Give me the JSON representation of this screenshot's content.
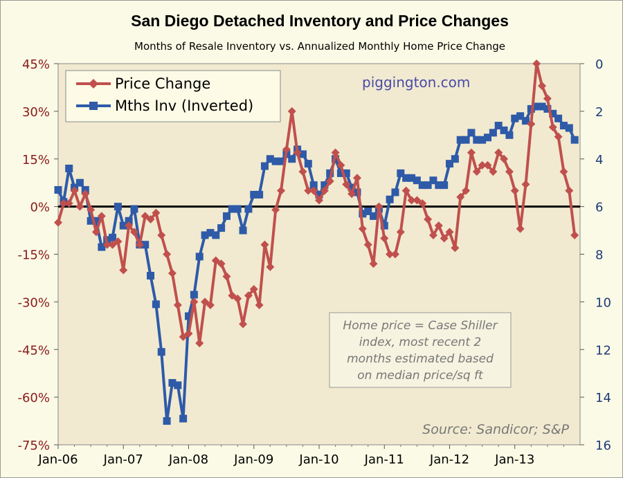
{
  "chart_data": {
    "type": "line",
    "title": "San Diego Detached Inventory and Price Changes",
    "subtitle": "Months of Resale Inventory vs. Annualized Monthly Home Price Change",
    "watermark": "piggington.com",
    "note": [
      "Home price = Case Shiller",
      "index, most recent 2",
      "months estimated based",
      "on median price/sq ft"
    ],
    "source": "Source: Sandicor; S&P",
    "x_ticks": [
      "Jan-06",
      "Jan-07",
      "Jan-08",
      "Jan-09",
      "Jan-10",
      "Jan-11",
      "Jan-12",
      "Jan-13"
    ],
    "y_left": {
      "ylim": [
        -75,
        45
      ],
      "ticks": [
        "45%",
        "30%",
        "15%",
        "0%",
        "-15%",
        "-30%",
        "-45%",
        "-60%",
        "-75%"
      ]
    },
    "y_right": {
      "ylim": [
        16,
        0
      ],
      "inverted": true,
      "ticks": [
        "0",
        "2",
        "4",
        "6",
        "8",
        "10",
        "12",
        "14",
        "16"
      ]
    },
    "legend_placement": "top-left",
    "zero_line": true,
    "colors": {
      "price": "#c0504d",
      "inventory": "#2e5aa8",
      "zero_line": "#000000",
      "plot_bg": "#f1ead0",
      "page_bg": "#fafae6"
    },
    "series": [
      {
        "name": "Price Change",
        "axis": "left",
        "marker": "diamond",
        "start": "Jan-06",
        "values": [
          -5,
          1,
          1,
          5,
          0,
          4,
          -1,
          -8,
          -3,
          -12,
          -12,
          -11,
          -20,
          -6,
          -8,
          -12,
          -3,
          -4,
          -2,
          -9,
          -15,
          -21,
          -31,
          -41,
          -40,
          -30,
          -43,
          -30,
          -31,
          -17,
          -18,
          -22,
          -28,
          -29,
          -37,
          -28,
          -26,
          -31,
          -12,
          -19,
          -1,
          5,
          18,
          30,
          17,
          11,
          5,
          5,
          2,
          5,
          8,
          17,
          13,
          7,
          4,
          9,
          -7,
          -12,
          -18,
          0,
          -10,
          -15,
          -15,
          -8,
          5,
          2,
          2,
          1,
          -4,
          -9,
          -6,
          -10,
          -8,
          -13,
          3,
          5,
          17,
          11,
          13,
          13,
          11,
          17,
          15,
          11,
          5,
          -7,
          7,
          26,
          45,
          38,
          34,
          25,
          22,
          11,
          5,
          -9
        ]
      },
      {
        "name": "Mths Inv (Inverted)",
        "axis": "right",
        "marker": "square",
        "start": "Jan-06",
        "values": [
          5.3,
          5.8,
          4.4,
          5.2,
          5.0,
          5.3,
          6.6,
          6.6,
          7.7,
          7.4,
          7.3,
          6.0,
          6.8,
          6.6,
          6.1,
          7.6,
          7.6,
          8.9,
          10.1,
          12.1,
          15.0,
          13.4,
          13.5,
          14.9,
          10.6,
          9.7,
          8.1,
          7.2,
          7.1,
          7.2,
          6.9,
          6.4,
          6.1,
          6.1,
          7.0,
          6.1,
          5.5,
          5.5,
          4.3,
          4.0,
          4.1,
          4.1,
          3.8,
          4.0,
          3.6,
          3.8,
          4.2,
          5.1,
          5.5,
          5.1,
          4.6,
          4.0,
          4.6,
          4.6,
          5.2,
          5.4,
          6.3,
          6.2,
          6.4,
          6.1,
          6.8,
          5.7,
          5.4,
          4.6,
          4.8,
          4.8,
          4.9,
          5.1,
          5.1,
          4.9,
          5.1,
          5.1,
          4.2,
          4.0,
          3.2,
          3.2,
          2.9,
          3.2,
          3.2,
          3.1,
          2.9,
          2.6,
          2.8,
          3.0,
          2.3,
          2.2,
          2.4,
          1.9,
          1.8,
          1.8,
          1.9,
          2.1,
          2.3,
          2.6,
          2.7,
          3.2
        ]
      }
    ]
  }
}
